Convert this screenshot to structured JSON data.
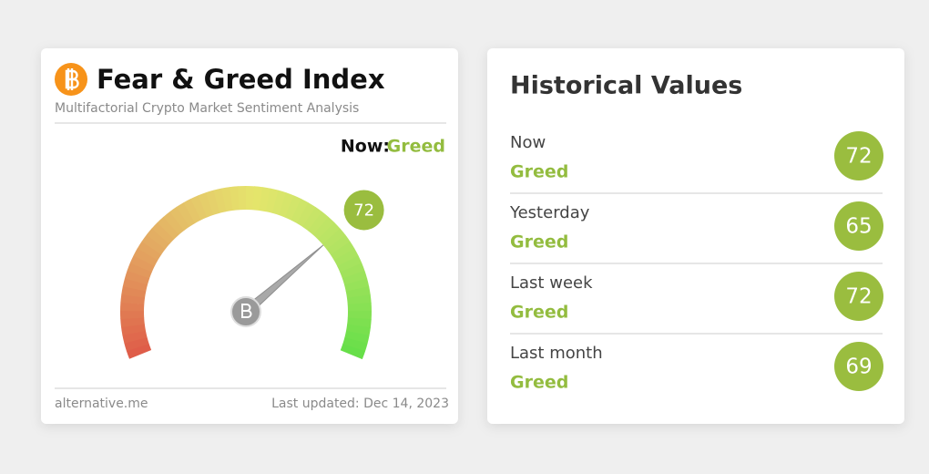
{
  "index_card": {
    "title": "Fear & Greed Index",
    "subtitle": "Multifactorial Crypto Market Sentiment Analysis",
    "now_label": "Now:",
    "now_status": "Greed",
    "gauge": {
      "value": 72,
      "lim": [
        0,
        100
      ]
    },
    "source": "alternative.me",
    "last_updated": "Last updated: Dec 14, 2023"
  },
  "history": {
    "title": "Historical Values",
    "rows": [
      {
        "period": "Now",
        "status": "Greed",
        "value": 72
      },
      {
        "period": "Yesterday",
        "status": "Greed",
        "value": 65
      },
      {
        "period": "Last week",
        "status": "Greed",
        "value": 72
      },
      {
        "period": "Last month",
        "status": "Greed",
        "value": 69
      }
    ]
  }
}
